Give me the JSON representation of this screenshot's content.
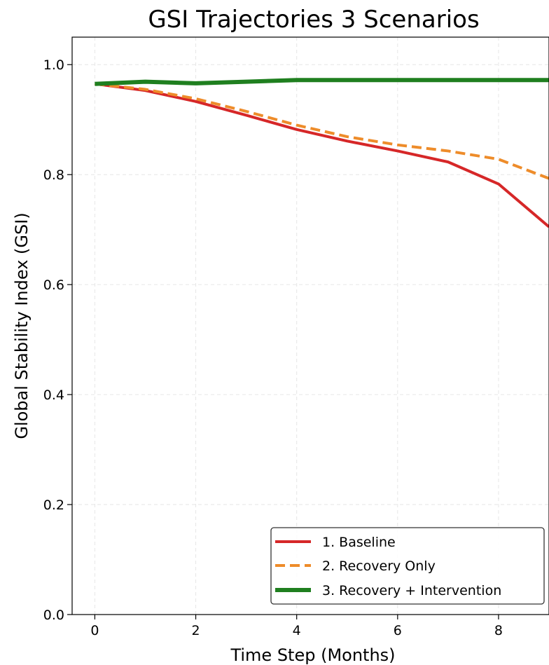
{
  "chart_data": {
    "type": "line",
    "title": "GSI Trajectories 3 Scenarios",
    "xlabel": "Time Step (Months)",
    "ylabel": "Global Stability Index (GSI)",
    "xlim": [
      -0.45,
      9.0
    ],
    "ylim": [
      0.0,
      1.05
    ],
    "xticks": [
      0,
      2,
      4,
      6,
      8
    ],
    "xtick_labels": [
      "0",
      "2",
      "4",
      "6",
      "8"
    ],
    "yticks": [
      0.0,
      0.2,
      0.4,
      0.6,
      0.8,
      1.0
    ],
    "ytick_labels": [
      "0.0",
      "0.2",
      "0.4",
      "0.6",
      "0.8",
      "1.0"
    ],
    "grid": true,
    "legend_position": "bottom-right",
    "x": [
      0,
      1,
      2,
      3,
      4,
      5,
      6,
      7,
      8,
      9
    ],
    "series": [
      {
        "name": "1. Baseline",
        "color": "#d62728",
        "style": "solid",
        "values": [
          0.965,
          0.953,
          0.933,
          0.908,
          0.882,
          0.861,
          0.843,
          0.823,
          0.783,
          0.705
        ]
      },
      {
        "name": "2. Recovery Only",
        "color": "#ee8c2a",
        "style": "dashed",
        "values": [
          0.965,
          0.955,
          0.938,
          0.915,
          0.89,
          0.869,
          0.854,
          0.843,
          0.828,
          0.793
        ]
      },
      {
        "name": "3. Recovery + Intervention",
        "color": "#1f7f1f",
        "style": "solid-thick",
        "values": [
          0.965,
          0.969,
          0.966,
          0.969,
          0.972,
          0.972,
          0.972,
          0.972,
          0.972,
          0.972
        ]
      }
    ]
  }
}
